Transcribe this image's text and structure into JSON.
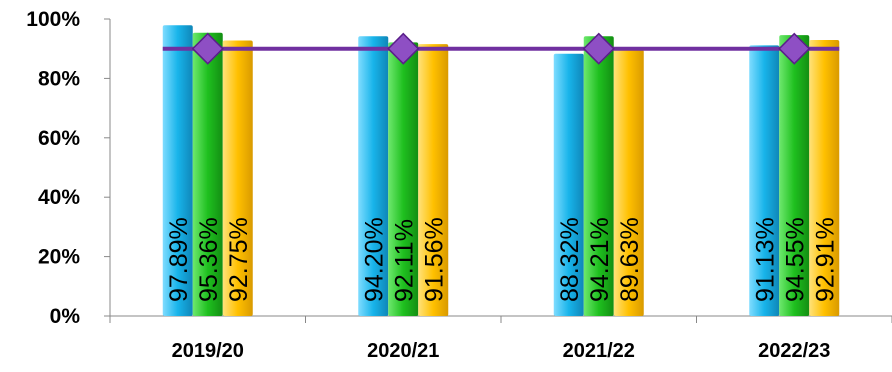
{
  "chart_data": {
    "type": "bar",
    "categories": [
      "2019/20",
      "2020/21",
      "2021/22",
      "2022/23"
    ],
    "series": [
      {
        "values": [
          97.89,
          94.2,
          88.32,
          91.13
        ],
        "labels": [
          "97.89%",
          "94.20%",
          "88.32%",
          "91.13%"
        ],
        "color": "#1fb6e8"
      },
      {
        "values": [
          95.36,
          92.11,
          94.21,
          94.55
        ],
        "labels": [
          "95.36%",
          "92.11%",
          "94.21%",
          "94.55%"
        ],
        "color": "#22c422"
      },
      {
        "values": [
          92.75,
          91.56,
          89.63,
          92.91
        ],
        "labels": [
          "92.75%",
          "91.56%",
          "89.63%",
          "92.91%"
        ],
        "color": "#ffc000"
      }
    ],
    "line_series": {
      "values": [
        90,
        90,
        90,
        90
      ],
      "color": "#7030a0"
    },
    "yticks": [
      "0%",
      "20%",
      "40%",
      "60%",
      "80%",
      "100%"
    ],
    "ylim": [
      0,
      100
    ],
    "grid": false,
    "legend": "none"
  }
}
